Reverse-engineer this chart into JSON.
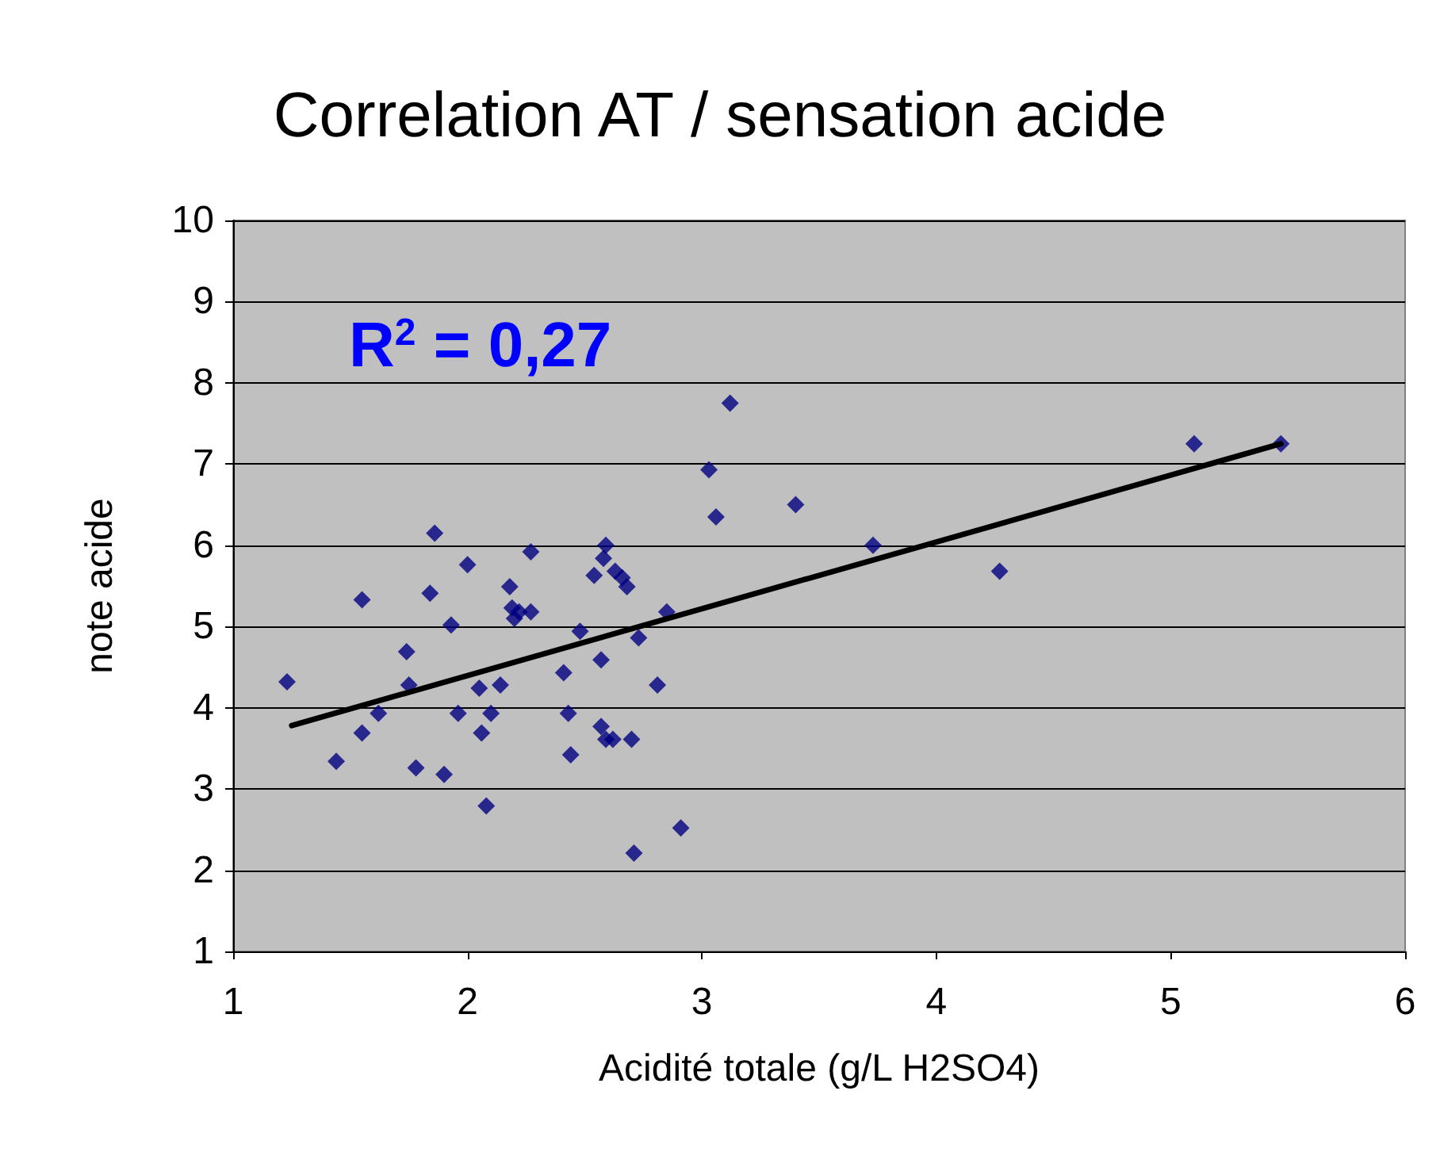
{
  "chart_data": {
    "type": "scatter",
    "title": "Correlation AT / sensation acide",
    "xlabel": "Acidité totale (g/L H2SO4)",
    "ylabel": "note acide",
    "annotations": [
      "R$^{2}$ = 0,27"
    ],
    "xlim": [
      1,
      6
    ],
    "xticks": [
      1,
      2,
      3,
      4,
      5,
      6
    ],
    "ylim": [
      1,
      10
    ],
    "yticks": [
      1,
      2,
      3,
      4,
      5,
      6,
      7,
      8,
      9,
      10
    ],
    "grid": "y",
    "marker": "diamond",
    "series": [
      {
        "color": "#000080",
        "x": [
          1.23,
          1.44,
          1.55,
          1.55,
          1.62,
          1.74,
          1.75,
          1.78,
          1.84,
          1.86,
          1.9,
          1.93,
          1.96,
          2.0,
          2.05,
          2.06,
          2.08,
          2.1,
          2.14,
          2.18,
          2.19,
          2.2,
          2.22,
          2.27,
          2.27,
          2.41,
          2.43,
          2.44,
          2.48,
          2.54,
          2.57,
          2.57,
          2.58,
          2.59,
          2.59,
          2.62,
          2.63,
          2.66,
          2.68,
          2.7,
          2.71,
          2.73,
          2.81,
          2.85,
          2.91,
          3.03,
          3.06,
          3.12,
          3.4,
          3.73,
          4.27,
          5.1,
          5.47
        ],
        "values": [
          4.32,
          3.34,
          3.69,
          5.33,
          3.93,
          4.69,
          4.28,
          3.26,
          5.41,
          6.15,
          3.18,
          5.02,
          3.93,
          5.76,
          4.24,
          3.69,
          2.79,
          3.93,
          4.28,
          5.49,
          5.23,
          5.1,
          5.18,
          5.92,
          5.18,
          4.43,
          3.93,
          3.42,
          4.94,
          5.63,
          4.59,
          3.77,
          5.84,
          6.0,
          3.61,
          3.61,
          5.68,
          5.6,
          5.49,
          3.61,
          2.21,
          4.86,
          4.28,
          5.18,
          2.52,
          6.93,
          6.35,
          7.75,
          6.5,
          6.0,
          5.68,
          7.25,
          7.25
        ]
      },
      {
        "type": "line",
        "color": "#000000",
        "marker": "none",
        "line_style": "solid",
        "x": [
          1.25,
          5.47
        ],
        "values": [
          3.78,
          7.25
        ]
      }
    ]
  }
}
